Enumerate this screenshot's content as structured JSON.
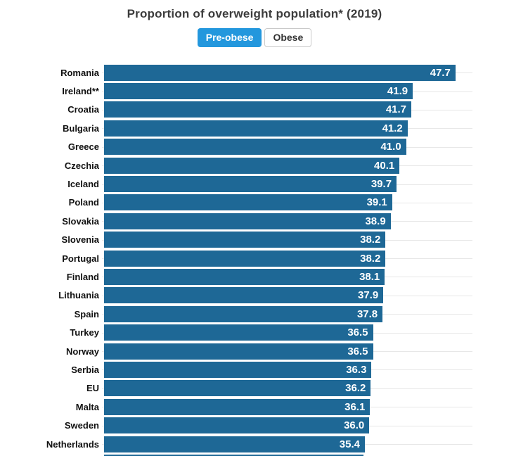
{
  "header": {
    "title": "Proportion of overweight population* (2019)"
  },
  "tabs": [
    {
      "label": "Pre-obese",
      "active": true
    },
    {
      "label": "Obese",
      "active": false
    }
  ],
  "colors": {
    "bar": "#1e6896",
    "active_tab": "#2397dd",
    "inactive_tab_border": "#c9c9c9",
    "gridline": "#e7e7e7",
    "title": "#3c3c3c",
    "label": "#111111",
    "value_text": "#ffffff"
  },
  "chart_data": {
    "type": "bar",
    "orientation": "horizontal",
    "title": "Proportion of overweight population* (2019)",
    "series_name": "Pre-obese",
    "xlabel": "",
    "ylabel": "",
    "xlim": [
      0,
      50
    ],
    "grid": "row-center-lines",
    "value_labels": "inside-end",
    "legend_position": "top-tabs",
    "categories": [
      "Romania",
      "Ireland**",
      "Croatia",
      "Bulgaria",
      "Greece",
      "Czechia",
      "Iceland",
      "Poland",
      "Slovakia",
      "Slovenia",
      "Portugal",
      "Finland",
      "Lithuania",
      "Spain",
      "Turkey",
      "Norway",
      "Serbia",
      "EU",
      "Malta",
      "Sweden",
      "Netherlands"
    ],
    "values": [
      47.7,
      41.9,
      41.7,
      41.2,
      41.0,
      40.1,
      39.7,
      39.1,
      38.9,
      38.2,
      38.2,
      38.1,
      37.9,
      37.8,
      36.5,
      36.5,
      36.3,
      36.2,
      36.1,
      36.0,
      35.4
    ],
    "clipped_partial_row_visible": true
  }
}
